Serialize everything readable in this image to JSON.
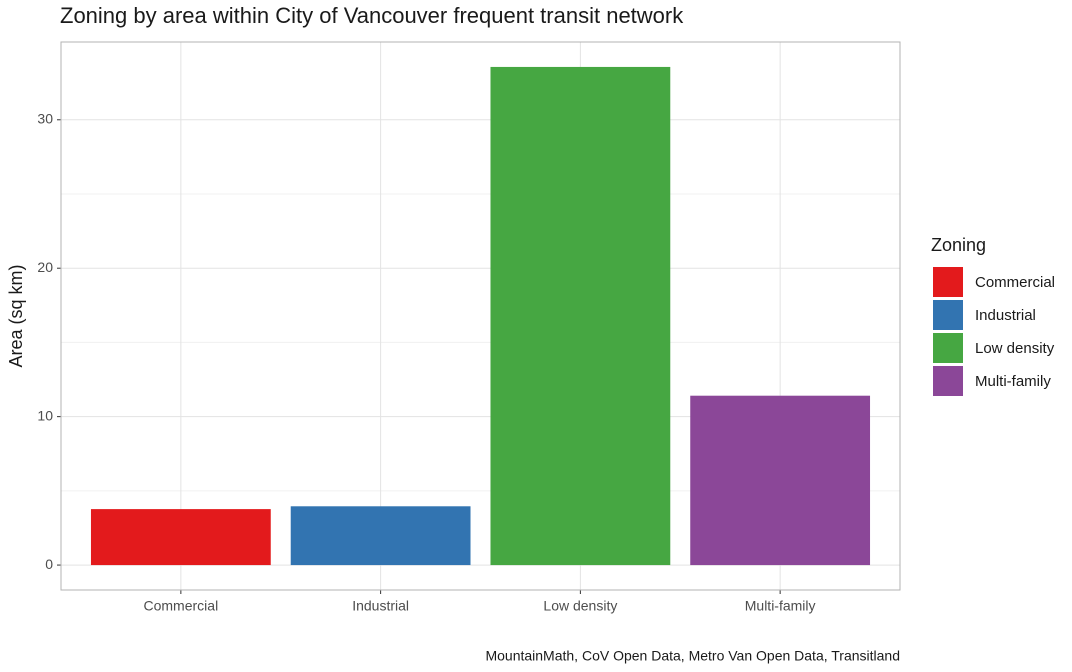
{
  "chart_data": {
    "type": "bar",
    "title": "Zoning by area within City of Vancouver frequent transit network",
    "y_label": "Area (sq km)",
    "caption": "MountainMath, CoV Open Data, Metro Van Open Data, Transitland",
    "legend_title": "Zoning",
    "legend_position": "right",
    "categories": [
      "Commercial",
      "Industrial",
      "Low density",
      "Multi-family"
    ],
    "values": [
      3.77,
      3.96,
      33.56,
      11.41
    ],
    "colors": [
      "#e31a1c",
      "#3274b1",
      "#46a742",
      "#8b4798"
    ],
    "ylim": [
      -1.68,
      35.24
    ],
    "yticks": [
      0,
      10,
      20,
      30
    ],
    "yminor": [
      5,
      15,
      25
    ],
    "grid": true
  }
}
